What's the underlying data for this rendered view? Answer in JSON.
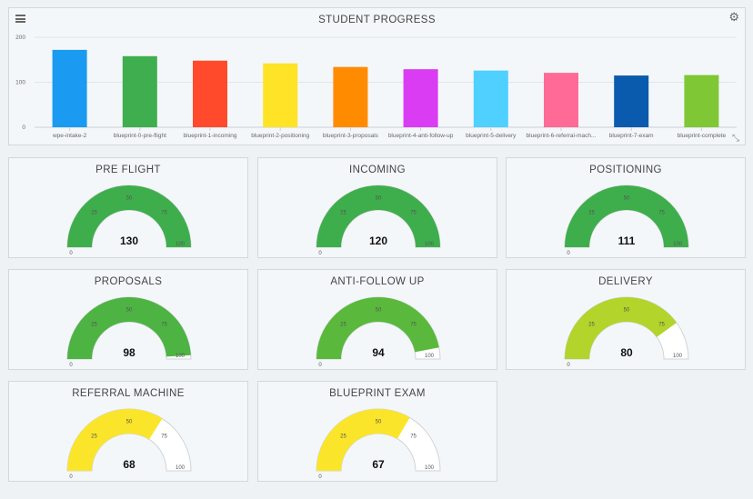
{
  "chart_data": {
    "type": "bar",
    "title": "STUDENT PROGRESS",
    "categories": [
      "wpe-intake-2",
      "blueprint-0-pre-flight",
      "blueprint-1-incoming",
      "blueprint-2-positioning",
      "blueprint-3-proposals",
      "blueprint-4-anti-follow-up",
      "blueprint-5-delivery",
      "blueprint-6-referral-mach...",
      "blueprint-7-exam",
      "blueprint-complete"
    ],
    "values": [
      172,
      158,
      148,
      142,
      134,
      129,
      126,
      121,
      115,
      116
    ],
    "colors": [
      "#1a9af0",
      "#3fae4f",
      "#ff4b2b",
      "#ffe326",
      "#ff8c00",
      "#d93cf2",
      "#4fd0ff",
      "#ff6b96",
      "#0a5bad",
      "#7fc734"
    ],
    "ylim": [
      0,
      200
    ],
    "yticks": [
      "0",
      "100",
      "200"
    ],
    "grid": true
  },
  "gauges": [
    {
      "title": "PRE FLIGHT",
      "value": "130",
      "fill": 1.0,
      "color": "#3eae4c"
    },
    {
      "title": "INCOMING",
      "value": "120",
      "fill": 1.0,
      "color": "#3eae4c"
    },
    {
      "title": "POSITIONING",
      "value": "111",
      "fill": 1.0,
      "color": "#3eae4c"
    },
    {
      "title": "PROPOSALS",
      "value": "98",
      "fill": 0.98,
      "color": "#4db443"
    },
    {
      "title": "ANTI-FOLLOW UP",
      "value": "94",
      "fill": 0.94,
      "color": "#5ab93c"
    },
    {
      "title": "DELIVERY",
      "value": "80",
      "fill": 0.8,
      "color": "#b3d42a"
    },
    {
      "title": "REFERRAL MACHINE",
      "value": "68",
      "fill": 0.68,
      "color": "#fbe52a"
    },
    {
      "title": "BLUEPRINT EXAM",
      "value": "67",
      "fill": 0.67,
      "color": "#fbe52a"
    }
  ],
  "gauge_ticks": [
    "0",
    "25",
    "50",
    "75",
    "100"
  ],
  "icons": {
    "menu": "hamburger-icon",
    "settings": "gear-icon",
    "resize": "expand-icon"
  }
}
